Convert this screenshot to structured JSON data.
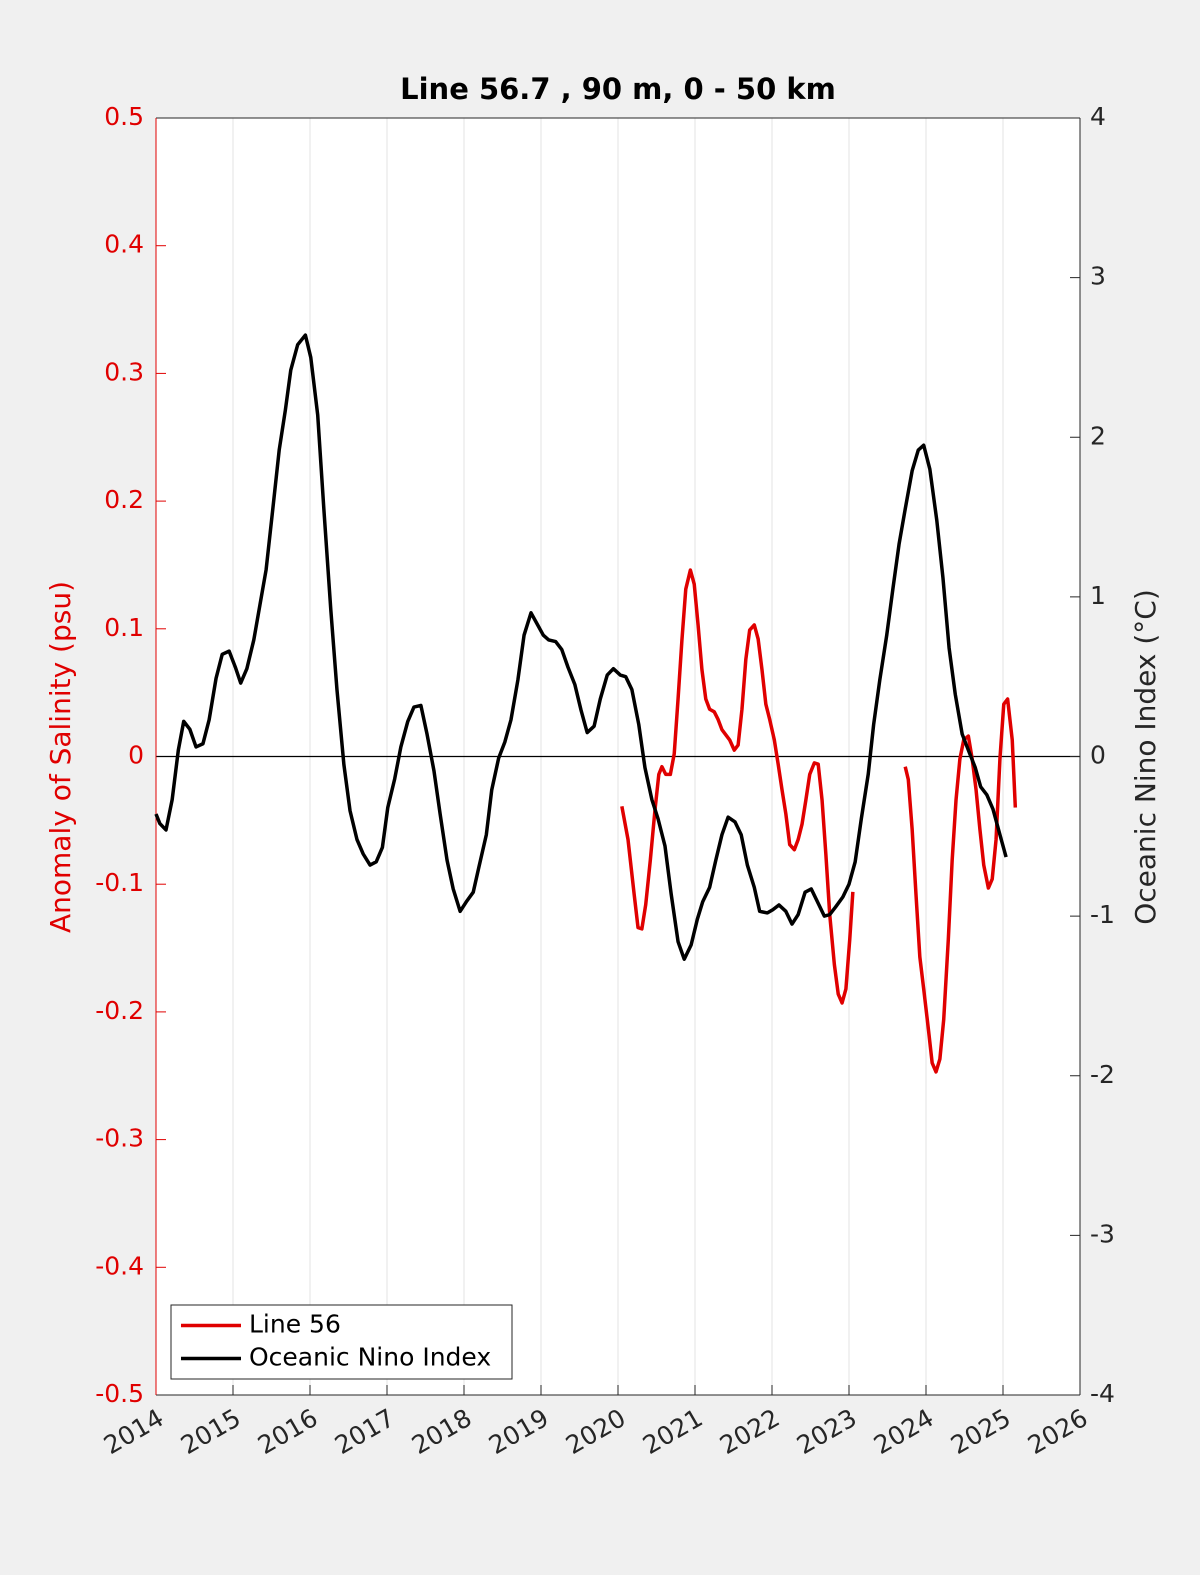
{
  "chart_data": {
    "type": "line",
    "title": "Line 56.7 , 90 m, 0 - 50 km",
    "ylabel": "Anomaly of Salinity (psu)",
    "y2label": "Oceanic Nino Index (°C)",
    "xlim": [
      2014,
      2026
    ],
    "xticks": [
      2014,
      2015,
      2016,
      2017,
      2018,
      2019,
      2020,
      2021,
      2022,
      2023,
      2024,
      2025,
      2026
    ],
    "ylim": [
      -0.5,
      0.5
    ],
    "yticks": [
      -0.5,
      -0.4,
      -0.3,
      -0.2,
      -0.1,
      0,
      0.1,
      0.2,
      0.3,
      0.4,
      0.5
    ],
    "y2lim": [
      -4,
      4
    ],
    "y2ticks": [
      -4,
      -3,
      -2,
      -1,
      0,
      1,
      2,
      3,
      4
    ],
    "grid": true,
    "legend": "lower left",
    "series": [
      {
        "name": "Line 56",
        "color": "#e00000",
        "axis": "y",
        "x": [
          2020.05,
          2020.13,
          2020.21,
          2020.26,
          2020.31,
          2020.36,
          2020.42,
          2020.48,
          2020.53,
          2020.57,
          2020.62,
          2020.68,
          2020.73,
          2020.78,
          2020.83,
          2020.88,
          2020.94,
          2020.99,
          2021.04,
          2021.09,
          2021.14,
          2021.19,
          2021.25,
          2021.3,
          2021.35,
          2021.4,
          2021.45,
          2021.51,
          2021.56,
          2021.61,
          2021.66,
          2021.71,
          2021.77,
          2021.82,
          2021.87,
          2021.92,
          2021.97,
          2022.03,
          2022.08,
          2022.13,
          2022.18,
          2022.23,
          2022.29,
          2022.34,
          2022.39,
          2022.44,
          2022.49,
          2022.55,
          2022.6,
          2022.65,
          2022.7,
          2022.75,
          2022.81,
          2022.86,
          2022.91,
          2022.96,
          2023.01,
          2023.05,
          2023.4,
          2023.73,
          2023.77,
          2023.82,
          2023.87,
          2023.92,
          2023.97,
          2024.03,
          2024.08,
          2024.13,
          2024.18,
          2024.23,
          2024.29,
          2024.34,
          2024.39,
          2024.44,
          2024.49,
          2024.55,
          2024.6,
          2024.65,
          2024.7,
          2024.75,
          2024.81,
          2024.86,
          2024.91,
          2024.96,
          2025.01,
          2025.06,
          2025.12,
          2025.16
        ],
        "values": [
          -0.039,
          -0.065,
          -0.108,
          -0.134,
          -0.135,
          -0.116,
          -0.081,
          -0.042,
          -0.014,
          -0.008,
          -0.014,
          -0.014,
          0.002,
          0.045,
          0.091,
          0.131,
          0.146,
          0.135,
          0.103,
          0.068,
          0.045,
          0.037,
          0.035,
          0.029,
          0.021,
          0.017,
          0.013,
          0.005,
          0.009,
          0.037,
          0.076,
          0.099,
          0.103,
          0.092,
          0.068,
          0.041,
          0.029,
          0.013,
          -0.006,
          -0.026,
          -0.045,
          -0.069,
          -0.073,
          -0.065,
          -0.053,
          -0.034,
          -0.014,
          -0.005,
          -0.006,
          -0.034,
          -0.077,
          -0.124,
          -0.163,
          -0.186,
          -0.193,
          -0.182,
          -0.143,
          -0.106,
          null,
          -0.008,
          -0.018,
          -0.057,
          -0.108,
          -0.157,
          -0.182,
          -0.213,
          -0.24,
          -0.247,
          -0.237,
          -0.206,
          -0.143,
          -0.081,
          -0.034,
          -0.002,
          0.013,
          0.016,
          -0.002,
          -0.026,
          -0.057,
          -0.085,
          -0.103,
          -0.096,
          -0.065,
          -0.002,
          0.041,
          0.045,
          0.013,
          -0.04
        ]
      },
      {
        "name": "Oceanic Nino Index",
        "color": "#000000",
        "axis": "y2",
        "x": [
          2014.0,
          2014.05,
          2014.13,
          2014.21,
          2014.29,
          2014.36,
          2014.44,
          2014.52,
          2014.61,
          2014.69,
          2014.78,
          2014.86,
          2014.95,
          2015.03,
          2015.1,
          2015.18,
          2015.27,
          2015.35,
          2015.43,
          2015.51,
          2015.6,
          2015.68,
          2015.75,
          2015.84,
          2015.94,
          2016.01,
          2016.1,
          2016.18,
          2016.27,
          2016.35,
          2016.44,
          2016.52,
          2016.61,
          2016.69,
          2016.78,
          2016.86,
          2016.94,
          2017.01,
          2017.1,
          2017.18,
          2017.27,
          2017.35,
          2017.44,
          2017.52,
          2017.61,
          2017.69,
          2017.78,
          2017.86,
          2017.95,
          2018.03,
          2018.12,
          2018.19,
          2018.29,
          2018.36,
          2018.45,
          2018.53,
          2018.61,
          2018.7,
          2018.78,
          2018.87,
          2018.95,
          2019.03,
          2019.1,
          2019.19,
          2019.27,
          2019.35,
          2019.44,
          2019.52,
          2019.6,
          2019.69,
          2019.77,
          2019.86,
          2019.94,
          2020.03,
          2020.1,
          2020.18,
          2020.27,
          2020.35,
          2020.44,
          2020.52,
          2020.61,
          2020.69,
          2020.78,
          2020.86,
          2020.95,
          2021.03,
          2021.1,
          2021.19,
          2021.27,
          2021.35,
          2021.43,
          2021.52,
          2021.6,
          2021.68,
          2021.77,
          2021.84,
          2021.94,
          2022.01,
          2022.09,
          2022.18,
          2022.26,
          2022.34,
          2022.43,
          2022.51,
          2022.58,
          2022.68,
          2022.75,
          2022.83,
          2022.92,
          2023.0,
          2023.08,
          2023.16,
          2023.25,
          2023.32,
          2023.4,
          2023.49,
          2023.57,
          2023.65,
          2023.73,
          2023.82,
          2023.9,
          2023.97,
          2024.05,
          2024.14,
          2024.22,
          2024.3,
          2024.38,
          2024.47,
          2024.55,
          2024.64,
          2024.71,
          2024.79,
          2024.87,
          2024.96,
          2025.04
        ],
        "values": [
          -0.36,
          -0.42,
          -0.46,
          -0.27,
          0.04,
          0.22,
          0.17,
          0.06,
          0.08,
          0.23,
          0.49,
          0.64,
          0.66,
          0.56,
          0.46,
          0.55,
          0.73,
          0.95,
          1.17,
          1.52,
          1.92,
          2.17,
          2.42,
          2.58,
          2.64,
          2.5,
          2.14,
          1.55,
          0.92,
          0.42,
          -0.05,
          -0.34,
          -0.52,
          -0.61,
          -0.68,
          -0.66,
          -0.57,
          -0.32,
          -0.14,
          0.06,
          0.22,
          0.31,
          0.32,
          0.14,
          -0.09,
          -0.36,
          -0.65,
          -0.83,
          -0.97,
          -0.91,
          -0.85,
          -0.7,
          -0.49,
          -0.21,
          -0.01,
          0.09,
          0.23,
          0.48,
          0.76,
          0.9,
          0.83,
          0.76,
          0.73,
          0.72,
          0.67,
          0.56,
          0.45,
          0.29,
          0.15,
          0.19,
          0.36,
          0.51,
          0.55,
          0.51,
          0.5,
          0.42,
          0.2,
          -0.07,
          -0.27,
          -0.39,
          -0.56,
          -0.86,
          -1.16,
          -1.27,
          -1.18,
          -1.02,
          -0.91,
          -0.82,
          -0.65,
          -0.49,
          -0.38,
          -0.41,
          -0.49,
          -0.68,
          -0.82,
          -0.97,
          -0.98,
          -0.96,
          -0.93,
          -0.97,
          -1.05,
          -0.99,
          -0.85,
          -0.83,
          -0.9,
          -1.0,
          -0.99,
          -0.94,
          -0.88,
          -0.8,
          -0.66,
          -0.39,
          -0.11,
          0.2,
          0.48,
          0.76,
          1.05,
          1.33,
          1.55,
          1.79,
          1.92,
          1.95,
          1.8,
          1.48,
          1.12,
          0.68,
          0.39,
          0.14,
          0.04,
          -0.07,
          -0.19,
          -0.24,
          -0.33,
          -0.49,
          -0.63
        ]
      }
    ]
  }
}
